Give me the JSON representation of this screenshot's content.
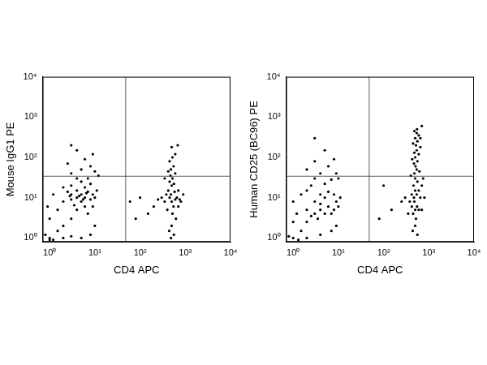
{
  "chart_data": [
    {
      "type": "scatter",
      "x_label": "CD4 APC",
      "y_label": "Mouse IgG1 PE",
      "xlim": [
        0.7,
        10000
      ],
      "ylim": [
        0.8,
        10000
      ],
      "xticks": [
        {
          "value": 1,
          "label": "10⁰"
        },
        {
          "value": 10,
          "label": "10¹"
        },
        {
          "value": 100,
          "label": "10²"
        },
        {
          "value": 1000,
          "label": "10³"
        },
        {
          "value": 10000,
          "label": "10⁴"
        }
      ],
      "yticks": [
        {
          "value": 1,
          "label": "10⁰"
        },
        {
          "value": 10,
          "label": "10¹"
        },
        {
          "value": 100,
          "label": "10²"
        },
        {
          "value": 1000,
          "label": "10³"
        },
        {
          "value": 10000,
          "label": "10⁴"
        }
      ],
      "log": true,
      "grid": false,
      "color": "#000000",
      "gates": {
        "x": 48,
        "y": 34
      },
      "x": [
        1,
        0.8,
        1.2,
        1.5,
        2,
        3,
        4,
        5,
        4,
        3,
        6,
        5,
        3,
        2,
        8,
        7,
        4,
        2.5,
        9,
        6,
        3,
        5,
        8,
        10,
        11,
        1.5,
        1,
        0.9,
        1.2,
        2,
        6,
        7,
        9,
        3.5,
        4.5,
        5.5,
        2.8,
        6.5,
        4,
        7,
        3,
        5,
        8,
        2.5,
        6,
        4,
        9,
        3,
        10,
        12,
        1,
        2,
        3,
        5,
        8,
        10,
        500,
        450,
        550,
        400,
        600,
        480,
        520,
        420,
        580,
        650,
        350,
        700,
        500,
        450,
        560,
        380,
        620,
        500,
        440,
        560,
        480,
        700,
        300,
        750,
        520,
        470,
        600,
        480,
        550,
        450,
        520,
        600,
        500,
        680,
        420,
        350,
        250,
        800,
        900,
        200,
        150,
        100,
        80,
        60
      ],
      "values": [
        1,
        1.2,
        0.9,
        1.5,
        2,
        3,
        5,
        8,
        10,
        9,
        10,
        12,
        12,
        8,
        9,
        14,
        15,
        14,
        12,
        18,
        20,
        25,
        22,
        10,
        15,
        5,
        3,
        6,
        12,
        18,
        6,
        4,
        6,
        6.5,
        11,
        9,
        11,
        13,
        30,
        30,
        40,
        50,
        60,
        70,
        90,
        150,
        120,
        200,
        45,
        35,
        0.9,
        1,
        1.1,
        1,
        1.2,
        2,
        8,
        10,
        6,
        5,
        9,
        12,
        4,
        15,
        14,
        10,
        8,
        6,
        20,
        25,
        22,
        12,
        3,
        2,
        1.5,
        1.2,
        1,
        15,
        10,
        9,
        30,
        35,
        40,
        50,
        60,
        80,
        100,
        120,
        180,
        200,
        45,
        30,
        9,
        8,
        12,
        6,
        4,
        10,
        3,
        8
      ]
    },
    {
      "type": "scatter",
      "x_label": "CD4 APC",
      "y_label": "Human CD25 (BC96) PE",
      "xlim": [
        0.7,
        10000
      ],
      "ylim": [
        0.8,
        10000
      ],
      "xticks": [
        {
          "value": 1,
          "label": "10⁰"
        },
        {
          "value": 10,
          "label": "10¹"
        },
        {
          "value": 100,
          "label": "10²"
        },
        {
          "value": 1000,
          "label": "10³"
        },
        {
          "value": 10000,
          "label": "10⁴"
        }
      ],
      "yticks": [
        {
          "value": 1,
          "label": "10⁰"
        },
        {
          "value": 10,
          "label": "10¹"
        },
        {
          "value": 100,
          "label": "10²"
        },
        {
          "value": 1000,
          "label": "10³"
        },
        {
          "value": 10000,
          "label": "10⁴"
        }
      ],
      "log": true,
      "grid": false,
      "color": "#000000",
      "gates": {
        "x": 48,
        "y": 34
      },
      "x": [
        1,
        0.8,
        1.3,
        1.5,
        2,
        3,
        4,
        2.5,
        3.5,
        5,
        6,
        4,
        2,
        7,
        8,
        9,
        3,
        5,
        1.2,
        1,
        1.5,
        2,
        4,
        6,
        8,
        10,
        11,
        2.5,
        5,
        3,
        7,
        4,
        2,
        6,
        3,
        8,
        5,
        3,
        9,
        10,
        1,
        2,
        4,
        7,
        9,
        500,
        450,
        550,
        480,
        520,
        420,
        600,
        470,
        540,
        500,
        460,
        560,
        500,
        480,
        540,
        510,
        470,
        560,
        500,
        480,
        540,
        520,
        560,
        500,
        540,
        600,
        480,
        650,
        450,
        420,
        380,
        600,
        650,
        700,
        350,
        500,
        440,
        560,
        700,
        300,
        750,
        400,
        620,
        600,
        430,
        650,
        550,
        700,
        250,
        800,
        150,
        100,
        80
      ],
      "values": [
        1,
        1.1,
        0.9,
        1.5,
        2.5,
        4,
        5,
        3.5,
        3,
        4,
        6,
        7,
        5,
        4,
        5,
        8,
        8,
        10,
        4,
        8,
        12,
        15,
        12,
        14,
        12,
        6,
        10,
        20,
        22,
        30,
        28,
        40,
        50,
        60,
        80,
        90,
        150,
        300,
        40,
        30,
        2.5,
        1,
        1.2,
        1.5,
        2,
        5,
        4,
        6,
        8,
        3,
        6,
        5,
        10,
        12,
        15,
        20,
        25,
        30,
        40,
        50,
        60,
        70,
        80,
        100,
        130,
        150,
        200,
        250,
        300,
        400,
        350,
        450,
        300,
        220,
        12,
        8,
        15,
        10,
        20,
        4,
        2,
        1.5,
        1.2,
        5,
        10,
        30,
        35,
        45,
        120,
        90,
        180,
        500,
        600,
        8,
        10,
        5,
        20,
        3
      ]
    }
  ]
}
